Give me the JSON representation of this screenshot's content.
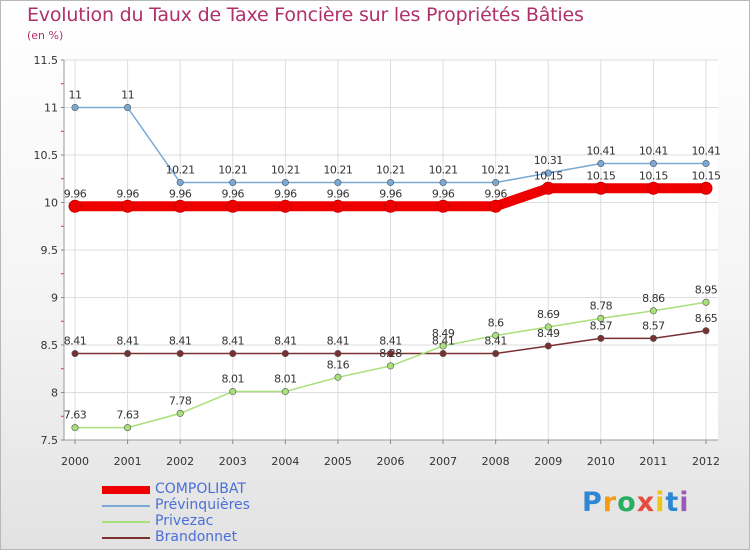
{
  "chart_data": {
    "type": "line",
    "title": "Evolution du Taux de Taxe Foncière sur les Propriétés Bâties",
    "unit_label": "(en %)",
    "x": [
      "2000",
      "2001",
      "2002",
      "2003",
      "2004",
      "2005",
      "2006",
      "2007",
      "2008",
      "2009",
      "2010",
      "2011",
      "2012"
    ],
    "ylim": [
      7.5,
      11.5
    ],
    "yticks": [
      7.5,
      8,
      8.5,
      9,
      9.5,
      10,
      10.5,
      11,
      11.5
    ],
    "ytick_labels": [
      "7.5",
      "8",
      "8.5",
      "9",
      "9.5",
      "10",
      "10.5",
      "11",
      "11.5"
    ],
    "series": [
      {
        "name": "COMPOLIBAT",
        "color": "#ee0000",
        "values": [
          9.96,
          9.96,
          9.96,
          9.96,
          9.96,
          9.96,
          9.96,
          9.96,
          9.96,
          10.15,
          10.15,
          10.15,
          10.15
        ],
        "labels": [
          "9.96",
          "9.96",
          "9.96",
          "9.96",
          "9.96",
          "9.96",
          "9.96",
          "9.96",
          "9.96",
          "10.15",
          "10.15",
          "10.15",
          "10.15"
        ]
      },
      {
        "name": "Prévinquières",
        "color": "#7aa9d6",
        "values": [
          11,
          11,
          10.21,
          10.21,
          10.21,
          10.21,
          10.21,
          10.21,
          10.21,
          10.31,
          10.41,
          10.41,
          10.41
        ],
        "labels": [
          "11",
          "11",
          "10.21",
          "10.21",
          "10.21",
          "10.21",
          "10.21",
          "10.21",
          "10.21",
          "10.31",
          "10.41",
          "10.41",
          "10.41"
        ]
      },
      {
        "name": "Privezac",
        "color": "#a8e07a",
        "values": [
          7.63,
          7.63,
          7.78,
          8.01,
          8.01,
          8.16,
          8.28,
          8.49,
          8.6,
          8.69,
          8.78,
          8.86,
          8.95
        ],
        "labels": [
          "7.63",
          "7.63",
          "7.78",
          "8.01",
          "8.01",
          "8.16",
          "8.28",
          "8.49",
          "8.6",
          "8.69",
          "8.78",
          "8.86",
          "8.95"
        ]
      },
      {
        "name": "Brandonnet",
        "color": "#7a3030",
        "values": [
          8.41,
          8.41,
          8.41,
          8.41,
          8.41,
          8.41,
          8.41,
          8.41,
          8.41,
          8.49,
          8.57,
          8.57,
          8.65
        ],
        "labels": [
          "8.41",
          "8.41",
          "8.41",
          "8.41",
          "8.41",
          "8.41",
          "8.41",
          "8.41",
          "8.41",
          "8.49",
          "8.57",
          "8.57",
          "8.65"
        ]
      }
    ]
  },
  "legend": {
    "items": [
      {
        "name": "COMPOLIBAT",
        "color": "#ee0000"
      },
      {
        "name": "Prévinquières",
        "color": "#7aa9d6"
      },
      {
        "name": "Privezac",
        "color": "#a8e07a"
      },
      {
        "name": "Brandonnet",
        "color": "#7a3030"
      }
    ]
  },
  "logo": {
    "letters": [
      "P",
      "r",
      "o",
      "x",
      "i",
      "t",
      "i"
    ],
    "colors": [
      "#2e86d4",
      "#f39c12",
      "#27ae60",
      "#e74c3c",
      "#f1c40f",
      "#2e86d4",
      "#9b59b6"
    ]
  }
}
